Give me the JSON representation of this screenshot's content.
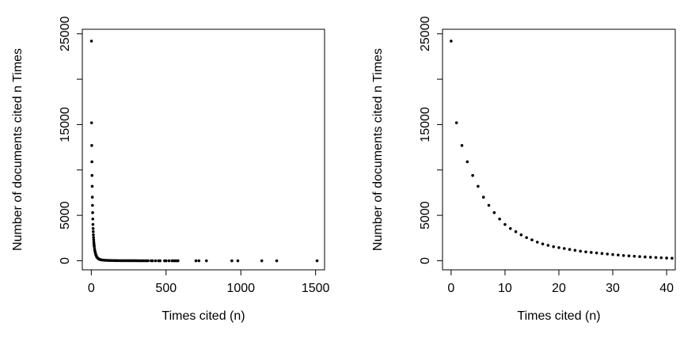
{
  "chart_data": [
    {
      "type": "scatter",
      "xlabel": "Times cited (n)",
      "ylabel": "Number of documents cited n Times",
      "xlim": [
        -60,
        1560
      ],
      "ylim": [
        -1000,
        25500
      ],
      "xticks": [
        0,
        500,
        1000,
        1500
      ],
      "yticks": [
        0,
        5000,
        15000,
        25000
      ],
      "ytick_labels": [
        "0",
        "5000",
        "15000",
        "25000"
      ],
      "series": [
        {
          "x": [
            1,
            2,
            3,
            4,
            5,
            6,
            7,
            8,
            9,
            10,
            11,
            12,
            13,
            14,
            15,
            16,
            17,
            18,
            19,
            20,
            22,
            24,
            26,
            28,
            30,
            33,
            36,
            40,
            45,
            50,
            55,
            60,
            65,
            70,
            80,
            90,
            100,
            110,
            120,
            130,
            140,
            150,
            160,
            170,
            180,
            190,
            200,
            210,
            220,
            230,
            240,
            250,
            260,
            270,
            280,
            290,
            300,
            310,
            320,
            330,
            340,
            350,
            360,
            370,
            380,
            400,
            410,
            430,
            450,
            460,
            490,
            500,
            520,
            540,
            550,
            560,
            570,
            580,
            700,
            720,
            770,
            940,
            980,
            1140,
            1240,
            1510
          ],
          "y": [
            24200,
            15200,
            12700,
            10900,
            9400,
            8200,
            7000,
            6100,
            5300,
            4600,
            4000,
            3550,
            3200,
            2850,
            2550,
            2300,
            2050,
            1850,
            1700,
            1550,
            1300,
            1100,
            950,
            800,
            680,
            550,
            440,
            340,
            260,
            200,
            160,
            130,
            110,
            90,
            70,
            55,
            45,
            38,
            32,
            28,
            24,
            20,
            18,
            16,
            14,
            12,
            11,
            10,
            9,
            8,
            7,
            6,
            6,
            5,
            5,
            4,
            4,
            3,
            3,
            3,
            3,
            2,
            2,
            2,
            2,
            2,
            1,
            1,
            1,
            1,
            1,
            1,
            1,
            1,
            1,
            1,
            1,
            1,
            1,
            1,
            1,
            1,
            1,
            1,
            1,
            1
          ]
        }
      ]
    },
    {
      "type": "scatter",
      "xlabel": "Times cited (n)",
      "ylabel": "Number of documents cited n Times",
      "xlim": [
        -1.6,
        41.6
      ],
      "ylim": [
        -1000,
        25500
      ],
      "xticks": [
        0,
        10,
        20,
        30,
        40
      ],
      "yticks": [
        0,
        5000,
        15000,
        25000
      ],
      "ytick_labels": [
        "0",
        "5000",
        "15000",
        "25000"
      ],
      "series": [
        {
          "x": [
            0,
            1,
            2,
            3,
            4,
            5,
            6,
            7,
            8,
            9,
            10,
            11,
            12,
            13,
            14,
            15,
            16,
            17,
            18,
            19,
            20,
            21,
            22,
            23,
            24,
            25,
            26,
            27,
            28,
            29,
            30,
            31,
            32,
            33,
            34,
            35,
            36,
            37,
            38,
            39,
            40,
            41
          ],
          "y": [
            24200,
            15200,
            12700,
            10900,
            9400,
            8200,
            7000,
            6100,
            5300,
            4600,
            4000,
            3550,
            3200,
            2850,
            2550,
            2300,
            2050,
            1850,
            1700,
            1550,
            1450,
            1350,
            1250,
            1150,
            1050,
            980,
            920,
            860,
            800,
            740,
            680,
            630,
            580,
            540,
            500,
            460,
            420,
            390,
            360,
            330,
            300,
            280
          ]
        }
      ]
    }
  ]
}
